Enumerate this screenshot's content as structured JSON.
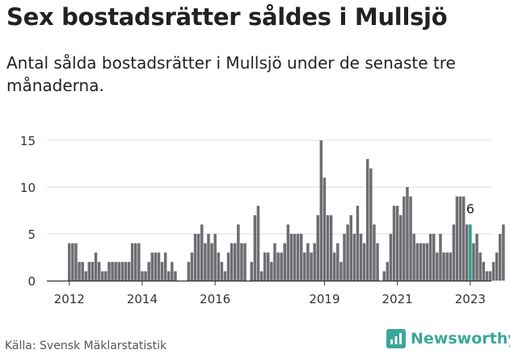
{
  "header": {
    "title": "Sex bostadsrätter såldes i Mullsjö",
    "subtitle": "Antal sålda bostadsrätter i Mullsjö under de senaste tre månaderna."
  },
  "footer": {
    "source": "Källa: Svensk Mäklarstatistik",
    "brand": "Newsworthy"
  },
  "colors": {
    "bar": "#6d6d73",
    "highlight": "#2a9d8f",
    "grid": "#dddddd",
    "brand": "#3aa79a"
  },
  "chart_data": {
    "type": "bar",
    "title": "Sex bostadsrätter såldes i Mullsjö",
    "xlabel": "",
    "ylabel": "",
    "ylim": [
      0,
      15
    ],
    "yticks": [
      0,
      5,
      10,
      15
    ],
    "xtick_labels": [
      "2012",
      "2014",
      "2016",
      "2019",
      "2021",
      "2023"
    ],
    "xtick_index": [
      0,
      22,
      44,
      77,
      99,
      121
    ],
    "highlight_label": "6",
    "highlight_index": 121,
    "values": [
      4,
      4,
      4,
      2,
      2,
      1,
      2,
      2,
      3,
      2,
      1,
      1,
      2,
      2,
      2,
      2,
      2,
      2,
      2,
      4,
      4,
      4,
      1,
      1,
      2,
      3,
      3,
      3,
      2,
      3,
      1,
      2,
      1,
      0,
      0,
      0,
      2,
      3,
      5,
      5,
      6,
      4,
      5,
      4,
      5,
      3,
      2,
      1,
      3,
      4,
      4,
      6,
      4,
      4,
      0,
      2,
      7,
      8,
      1,
      3,
      3,
      2,
      4,
      3,
      3,
      4,
      6,
      5,
      5,
      5,
      5,
      3,
      4,
      3,
      4,
      7,
      15,
      11,
      7,
      7,
      3,
      4,
      2,
      5,
      6,
      7,
      5,
      8,
      5,
      4,
      13,
      12,
      6,
      4,
      0,
      1,
      2,
      5,
      8,
      8,
      7,
      9,
      10,
      9,
      5,
      4,
      4,
      4,
      4,
      5,
      5,
      3,
      5,
      3,
      3,
      3,
      6,
      9,
      9,
      9,
      6,
      6,
      4,
      5,
      3,
      2,
      1,
      1,
      2,
      3,
      5,
      6
    ]
  }
}
